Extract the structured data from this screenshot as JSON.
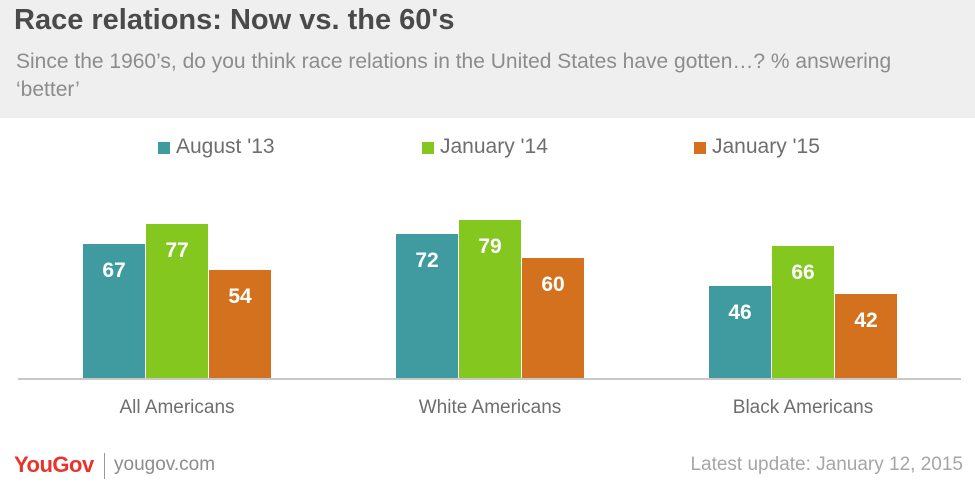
{
  "chart_data": {
    "type": "bar",
    "title": "Race relations: Now vs. the 60's",
    "subtitle": "Since the 1960’s, do you think race relations in the United States have gotten…? % answering ‘better’",
    "categories": [
      "All Americans",
      "White Americans",
      "Black Americans"
    ],
    "series": [
      {
        "name": "August '13",
        "color": "#3f9b9f",
        "values": [
          67,
          72,
          46
        ]
      },
      {
        "name": "January '14",
        "color": "#84c71f",
        "values": [
          77,
          79,
          66
        ]
      },
      {
        "name": "January '15",
        "color": "#d4711f",
        "values": [
          54,
          60,
          42
        ]
      }
    ],
    "ylim": [
      0,
      100
    ],
    "grid": false,
    "legend_position": "top"
  },
  "footer": {
    "logo": "YouGov",
    "site": "yougov.com",
    "update": "Latest update: January 12, 2015"
  }
}
